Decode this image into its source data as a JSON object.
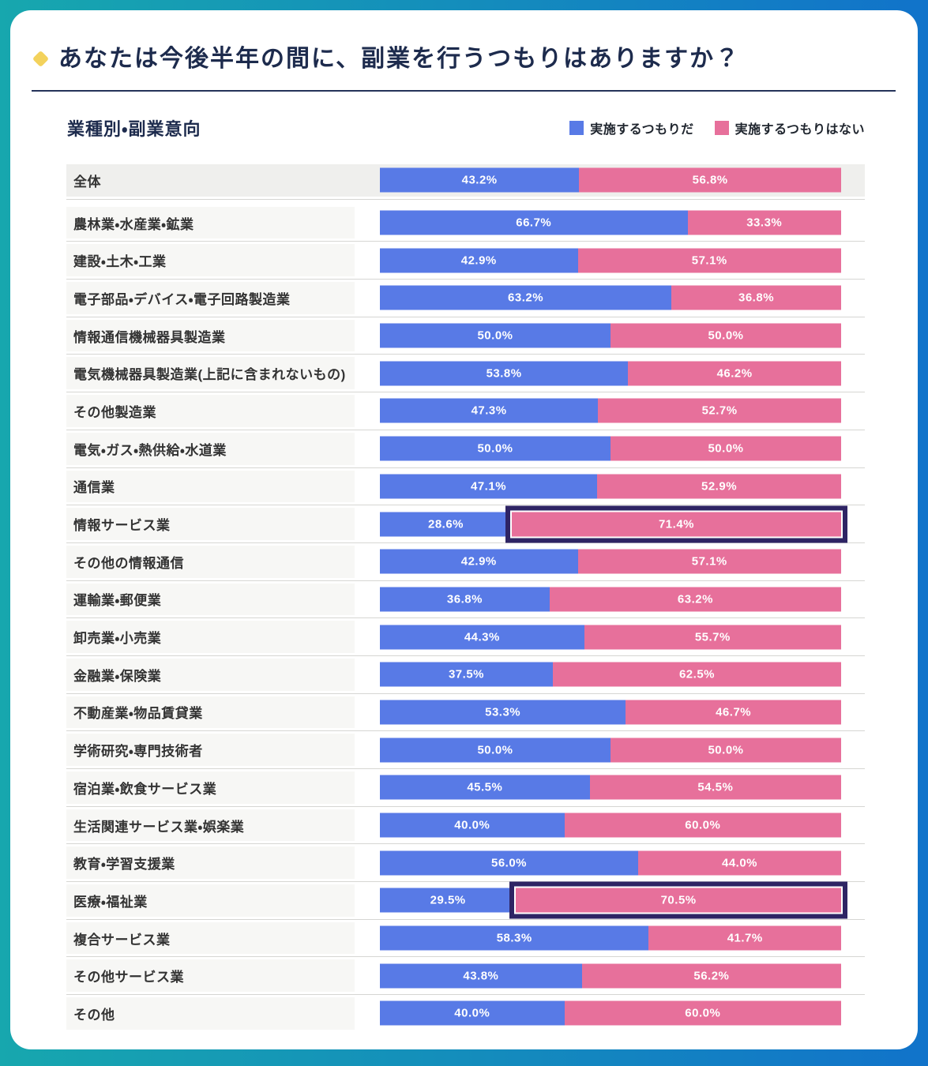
{
  "page": {
    "title": "あなたは今後半年の間に、副業を行うつもりはありますか？",
    "section_title": "業種別・副業意向"
  },
  "legend": [
    {
      "label": "実施するつもりだ",
      "color": "#587ae6"
    },
    {
      "label": "実施するつもりはない",
      "color": "#e7709b"
    }
  ],
  "chart_data": {
    "type": "bar",
    "orientation": "horizontal",
    "stacked": true,
    "unit": "%",
    "xlim": [
      0,
      100
    ],
    "value_label_format": "one decimal + %",
    "value_label_position": "inside-center",
    "legend_position": "top-right",
    "categories": [
      "全体",
      "農林業・水産業・鉱業",
      "建設・土木・工業",
      "電子部品・デバイス・電子回路製造業",
      "情報通信機械器具製造業",
      "電気機械器具製造業(上記に含まれないもの)",
      "その他製造業",
      "電気・ガス・熱供給・水道業",
      "通信業",
      "情報サービス業",
      "その他の情報通信",
      "運輸業・郵便業",
      "卸売業・小売業",
      "金融業・保険業",
      "不動産業・物品賃貸業",
      "学術研究・専門技術者",
      "宿泊業・飲食サービス業",
      "生活関連サービス業・娯楽業",
      "教育・学習支援業",
      "医療・福祉業",
      "複合サービス業",
      "その他サービス業",
      "その他"
    ],
    "series": [
      {
        "name": "実施するつもりだ",
        "color": "#587ae6",
        "values": [
          43.2,
          66.7,
          42.9,
          63.2,
          50.0,
          53.8,
          47.3,
          50.0,
          47.1,
          28.6,
          42.9,
          36.8,
          44.3,
          37.5,
          53.3,
          50.0,
          45.5,
          40.0,
          56.0,
          29.5,
          58.3,
          43.8,
          40.0
        ]
      },
      {
        "name": "実施するつもりはない",
        "color": "#e7709b",
        "values": [
          56.8,
          33.3,
          57.1,
          36.8,
          50.0,
          46.2,
          52.7,
          50.0,
          52.9,
          71.4,
          57.1,
          63.2,
          55.7,
          62.5,
          46.7,
          50.0,
          54.5,
          60.0,
          44.0,
          70.5,
          41.7,
          56.2,
          60.0
        ]
      }
    ],
    "highlighted_segments": [
      {
        "category": "情報サービス業",
        "series": "実施するつもりはない"
      },
      {
        "category": "医療・福祉業",
        "series": "実施するつもりはない"
      }
    ]
  },
  "colors": {
    "frame_gradient_left": "#17a7ae",
    "frame_gradient_right": "#1173ca",
    "title_navy": "#1d2b4d",
    "bullet_yellow": "#f3d25c",
    "highlight_box": "#2e2464",
    "row_label_bg": "#f7f7f5",
    "total_row_bg": "#efefed",
    "divider": "#d6d6d3"
  }
}
